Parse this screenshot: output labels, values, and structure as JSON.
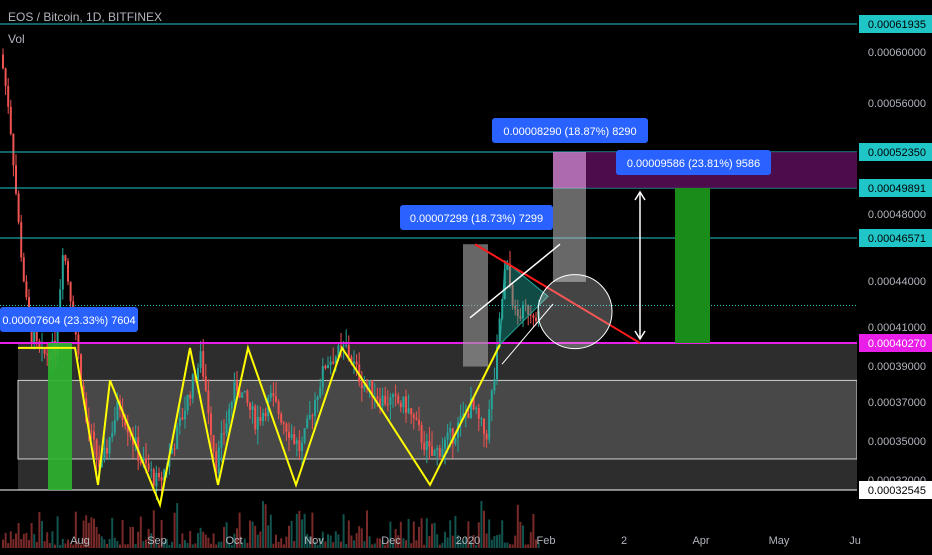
{
  "header": {
    "symbol_line": "EOS / Bitcoin, 1D, BITFINEX",
    "indicator": "Vol"
  },
  "chart_data": {
    "type": "candlestick",
    "instrument": "EOS / Bitcoin",
    "interval": "1D",
    "exchange": "BITFINEX",
    "ylim": [
      0.000305,
      0.000655
    ],
    "x_ticks": [
      "Aug",
      "Sep",
      "Oct",
      "Nov",
      "Dec",
      "2020",
      "Feb",
      "2",
      "Apr",
      "May",
      "Ju"
    ],
    "y_ticks": [
      "0.00060000",
      "0.00056000",
      "0.00048000",
      "0.00044000",
      "0.00041000",
      "0.00039000",
      "0.00037000",
      "0.00035000",
      "0.00032000"
    ],
    "highlighted_levels": [
      {
        "value": 0.00061935,
        "label": "0.00061935",
        "color": "#20c5c8"
      },
      {
        "value": 0.0005235,
        "label": "0.00052350",
        "color": "#20c5c8"
      },
      {
        "value": 0.00049891,
        "label": "0.00049891",
        "color": "#20c5c8"
      },
      {
        "value": 0.00046571,
        "label": "0.00046571",
        "color": "#20c5c8"
      },
      {
        "value": 0.0004027,
        "label": "0.00040270",
        "color": "#e91ee8"
      },
      {
        "value": 0.00032545,
        "label": "0.00032545",
        "color": "#ffffff"
      }
    ],
    "measurements": [
      {
        "text": "0.00008290 (18.87%) 8290",
        "from": 0.0004394,
        "to": 0.0005223
      },
      {
        "text": "0.00009586 (23.81%) 9586",
        "from": 0.0004027,
        "to": 0.00049856
      },
      {
        "text": "0.00007299 (18.73%) 7299",
        "from": 0.0003897,
        "to": 0.00046269
      },
      {
        "text": "0.00007604 (23.33%) 7604",
        "from": 0.00032592,
        "to": 0.00040196
      }
    ],
    "colors": {
      "background": "#000000",
      "up": "#26a69a",
      "down": "#ef5350",
      "zigzag": "#ffff00",
      "resistance": "#ff1a1a",
      "measure_label": "#2962ff",
      "target_box": "#1a8c1a"
    }
  }
}
